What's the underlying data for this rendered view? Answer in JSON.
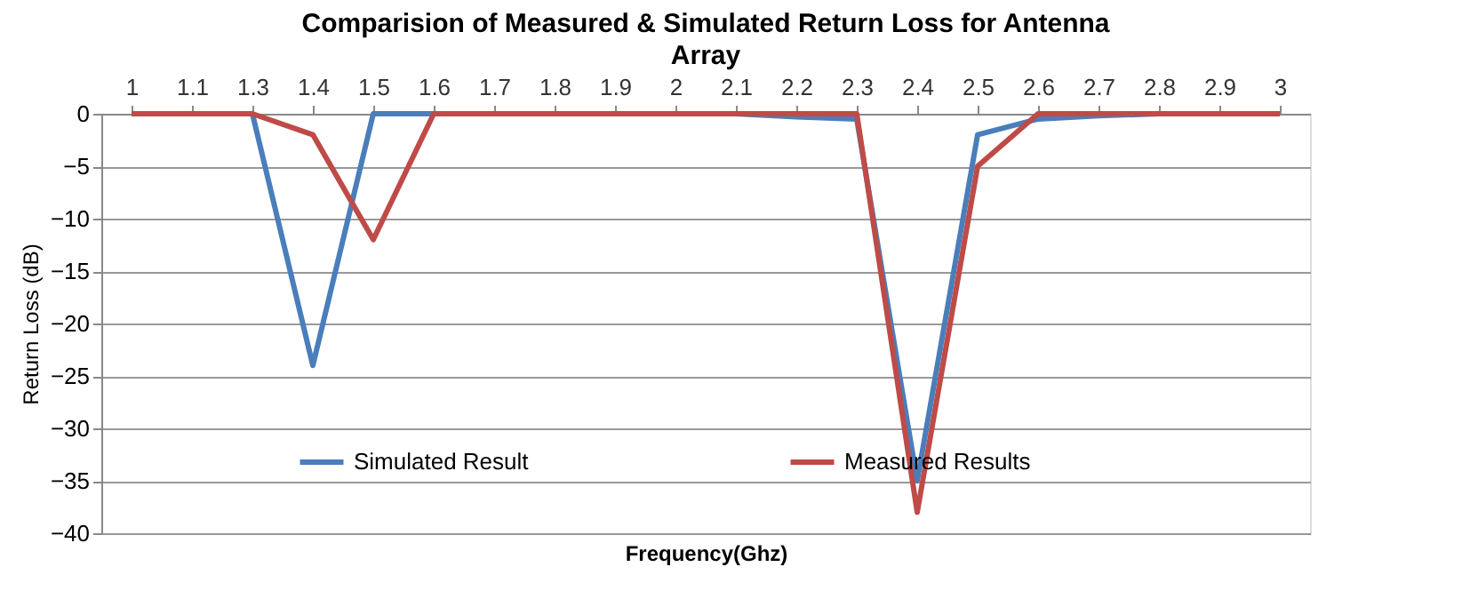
{
  "chart_data": {
    "type": "line",
    "title": "Comparision of Measured & Simulated Return Loss for Antenna Array",
    "xlabel": "Frequency(Ghz)",
    "ylabel": "Return Loss (dB)",
    "categories": [
      "1",
      "1.1",
      "1.3",
      "1.4",
      "1.5",
      "1.6",
      "1.7",
      "1.8",
      "1.9",
      "2",
      "2.1",
      "2.2",
      "2.3",
      "2.4",
      "2.5",
      "2.6",
      "2.7",
      "2.8",
      "2.9",
      "3"
    ],
    "series": [
      {
        "name": "Simulated Result",
        "color": "#4a7ebb",
        "values": [
          0,
          0,
          0,
          -24,
          0,
          0,
          0,
          0,
          0,
          0,
          0,
          -0.3,
          -0.5,
          -35,
          -2,
          -0.5,
          -0.2,
          0,
          0,
          0
        ]
      },
      {
        "name": "Measured Results",
        "color": "#be4b48",
        "values": [
          0,
          0,
          0,
          -2,
          -12,
          0,
          0,
          0,
          0,
          0,
          0,
          0,
          0,
          -38,
          -5,
          0,
          0,
          0,
          0,
          0
        ]
      }
    ],
    "ylim": [
      -40,
      0
    ],
    "yticks": [
      0,
      -5,
      -10,
      -15,
      -20,
      -25,
      -30,
      -35,
      -40
    ],
    "grid": "y",
    "legend": "bottom",
    "marker": "none",
    "line_style": "solid"
  }
}
